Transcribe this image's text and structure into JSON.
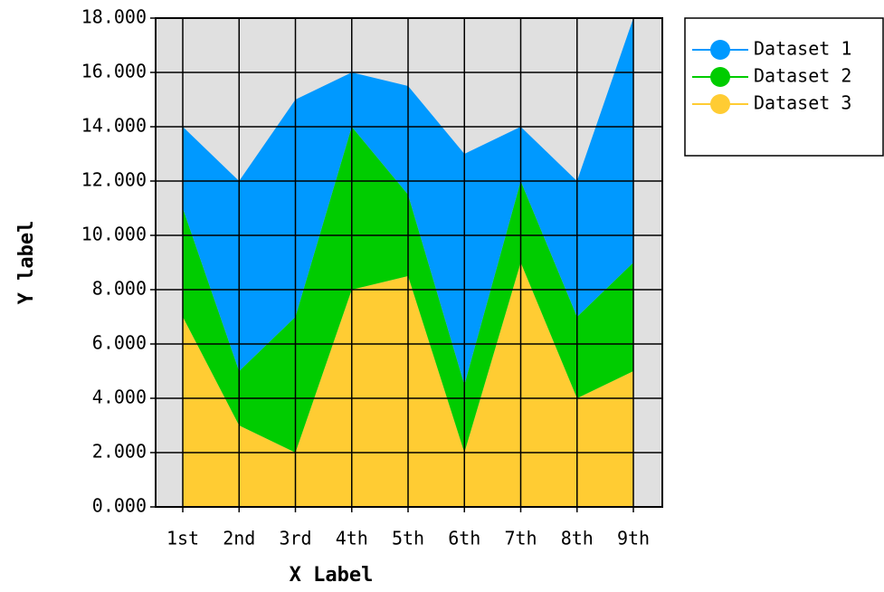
{
  "chart_data": {
    "type": "stacked_area",
    "x_label": "X Label",
    "y_label": "Y label",
    "categories": [
      "1st",
      "2nd",
      "3rd",
      "4th",
      "5th",
      "6th",
      "7th",
      "8th",
      "9th"
    ],
    "series": [
      {
        "name": "Dataset 1",
        "color": "#0099ff",
        "values": [
          3,
          7,
          8,
          2,
          4,
          8.5,
          2,
          5,
          9
        ]
      },
      {
        "name": "Dataset 2",
        "color": "#00cc00",
        "values": [
          4,
          2,
          5,
          6,
          3,
          2.5,
          3,
          3,
          4
        ]
      },
      {
        "name": "Dataset 3",
        "color": "#ffcc33",
        "values": [
          7,
          3,
          2,
          8,
          8.5,
          2,
          9,
          4,
          5
        ]
      }
    ],
    "ylim": [
      0,
      18
    ],
    "yticks": [
      {
        "value": 0,
        "label": "0.000"
      },
      {
        "value": 2,
        "label": "2.000"
      },
      {
        "value": 4,
        "label": "4.000"
      },
      {
        "value": 6,
        "label": "6.000"
      },
      {
        "value": 8,
        "label": "8.000"
      },
      {
        "value": 10,
        "label": "10.000"
      },
      {
        "value": 12,
        "label": "12.000"
      },
      {
        "value": 14,
        "label": "14.000"
      },
      {
        "value": 16,
        "label": "16.000"
      },
      {
        "value": 18,
        "label": "18.000"
      }
    ],
    "grid": true,
    "legend": "right",
    "background": "#e0e0e0"
  }
}
